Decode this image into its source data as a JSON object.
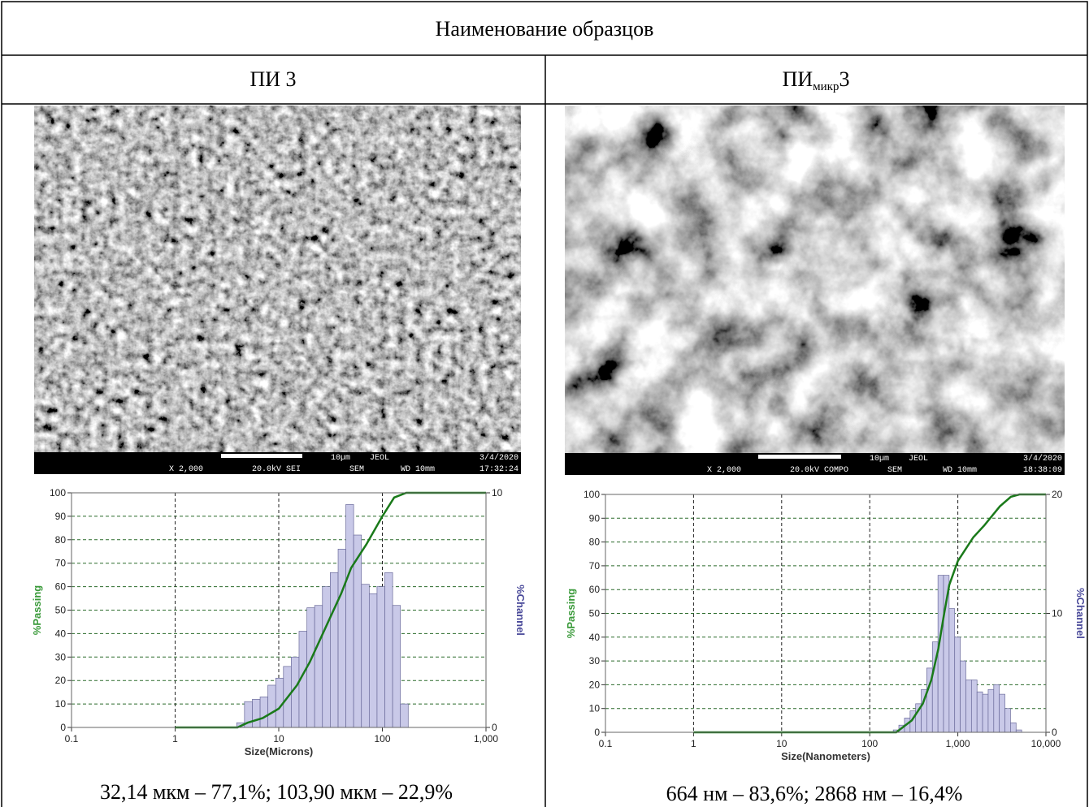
{
  "table": {
    "title": "Наименование образцов",
    "columns": [
      {
        "name": "ПИ 3"
      },
      {
        "name": "ПИ",
        "subscript": "микр",
        "suffix": "3"
      }
    ],
    "images": [
      {
        "scale": "10µm",
        "maker": "JEOL",
        "date": "3/4/2020",
        "magnification": "X 2,000",
        "voltage": "20.0kV SEI",
        "mode": "SEM",
        "wd": "WD 10mm",
        "time": "17:32:24"
      },
      {
        "scale": "10µm",
        "maker": "JEOL",
        "date": "3/4/2020",
        "magnification": "X 2,000",
        "voltage": "20.0kV COMPO",
        "mode": "SEM",
        "wd": "WD 10mm",
        "time": "18:38:09"
      }
    ],
    "captions": [
      "32,14 мкм – 77,1%; 103,90 мкм – 22,9%",
      "664 нм – 83,6%; 2868 нм – 16,4%"
    ]
  },
  "chart_data": [
    {
      "type": "histogram",
      "xlabel": "Size(Microns)",
      "ylabel": "%Passing",
      "y2label": "%Channel",
      "xscale": "log",
      "xlim": [
        0.1,
        1000
      ],
      "xticks": [
        0.1,
        1,
        10,
        100,
        {
          "value": 1000,
          "label": "1,000"
        }
      ],
      "ylim": [
        0,
        100
      ],
      "yticks": [
        0,
        10,
        20,
        30,
        40,
        50,
        60,
        70,
        80,
        90,
        100
      ],
      "y2lim": [
        0,
        10
      ],
      "y2ticks": [
        0,
        10
      ],
      "grid": true,
      "bar_color": "#c9c9e8",
      "ylabel_color": "#3a9a3a",
      "y2label_color": "#4a4a9a",
      "bins": [
        3.93,
        4.67,
        5.56,
        6.61,
        7.86,
        9.35,
        11.1,
        13.2,
        15.7,
        18.7,
        22.2,
        26.4,
        31.4,
        37.4,
        44.4,
        52.8,
        62.8,
        74.7,
        88.8,
        105.6,
        125.6,
        149.3,
        177.6
      ],
      "counts": [
        0.2,
        1.1,
        1.2,
        1.3,
        1.8,
        2.1,
        2.6,
        3.0,
        4.1,
        5.1,
        5.2,
        6.0,
        6.6,
        7.6,
        9.5,
        8.2,
        6.1,
        5.7,
        6.0,
        6.6,
        5.2,
        1.0
      ],
      "cumulative": {
        "color": "#1a7a1a",
        "x": [
          1,
          4,
          5,
          7,
          10,
          15,
          20,
          30,
          40,
          50,
          70,
          100,
          130,
          170,
          1000
        ],
        "values": [
          0,
          0,
          2,
          4,
          8,
          18,
          28,
          45,
          57,
          68,
          78,
          90,
          98,
          100,
          100
        ]
      }
    },
    {
      "type": "histogram",
      "xlabel": "Size(Nanometers)",
      "ylabel": "%Passing",
      "y2label": "%Channel",
      "xscale": "log",
      "xlim": [
        0.1,
        10000
      ],
      "xticks": [
        0.1,
        1,
        10,
        100,
        {
          "value": 1000,
          "label": "1,000"
        },
        {
          "value": 10000,
          "label": "10,000"
        }
      ],
      "ylim": [
        0,
        100
      ],
      "yticks": [
        0,
        10,
        20,
        30,
        40,
        50,
        60,
        70,
        80,
        90,
        100
      ],
      "y2lim": [
        0,
        20
      ],
      "y2ticks": [
        0,
        10,
        20
      ],
      "grid": true,
      "bar_color": "#c9c9e8",
      "ylabel_color": "#3a9a3a",
      "y2label_color": "#4a4a9a",
      "bins": [
        185,
        214,
        248,
        287,
        332,
        384,
        444,
        514,
        595,
        688,
        796,
        921,
        1066,
        1233,
        1427,
        1651,
        1910,
        2210,
        2557,
        2959,
        3424,
        3961,
        4583,
        5303
      ],
      "counts": [
        0.2,
        0.6,
        1.2,
        1.8,
        2.4,
        3.6,
        5.4,
        7.6,
        13.2,
        13.2,
        10.4,
        8,
        6,
        4.4,
        4.4,
        3.4,
        3.2,
        3.6,
        4,
        3.2,
        2,
        0.8,
        0.2
      ],
      "cumulative": {
        "color": "#1a7a1a",
        "x": [
          1,
          200,
          300,
          400,
          500,
          600,
          700,
          800,
          1000,
          1500,
          2000,
          3000,
          4000,
          5000,
          10000
        ],
        "values": [
          0,
          0,
          5,
          12,
          22,
          35,
          50,
          62,
          72,
          82,
          87,
          95,
          99,
          100,
          100
        ]
      }
    }
  ]
}
